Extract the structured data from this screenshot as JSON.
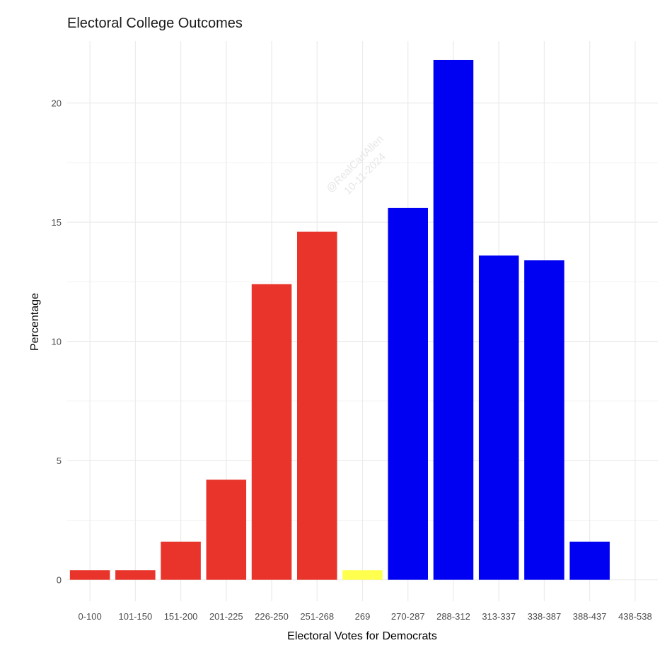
{
  "chart_data": {
    "type": "bar",
    "title": "Electoral College Outcomes",
    "xlabel": "Electoral Votes for Democrats",
    "ylabel": "Percentage",
    "ylim": [
      -0.9,
      22.6
    ],
    "yticks": [
      0,
      5,
      10,
      15,
      20
    ],
    "grid": true,
    "legend": "none",
    "watermark": [
      "@RealCarlAllen",
      "10-11-2024"
    ],
    "colors": {
      "republican": "#e8342a",
      "tie": "#ffff4d",
      "democrat": "#0000f2",
      "grid": "#ebebeb"
    },
    "categories": [
      "0-100",
      "101-150",
      "151-200",
      "201-225",
      "226-250",
      "251-268",
      "269",
      "270-287",
      "288-312",
      "313-337",
      "338-387",
      "388-437",
      "438-538"
    ],
    "values": [
      0.4,
      0.4,
      1.6,
      4.2,
      12.4,
      14.6,
      0.4,
      15.6,
      21.8,
      13.6,
      13.4,
      1.6,
      0
    ],
    "bar_colors": [
      "republican",
      "republican",
      "republican",
      "republican",
      "republican",
      "republican",
      "tie",
      "democrat",
      "democrat",
      "democrat",
      "democrat",
      "democrat",
      "democrat"
    ]
  }
}
